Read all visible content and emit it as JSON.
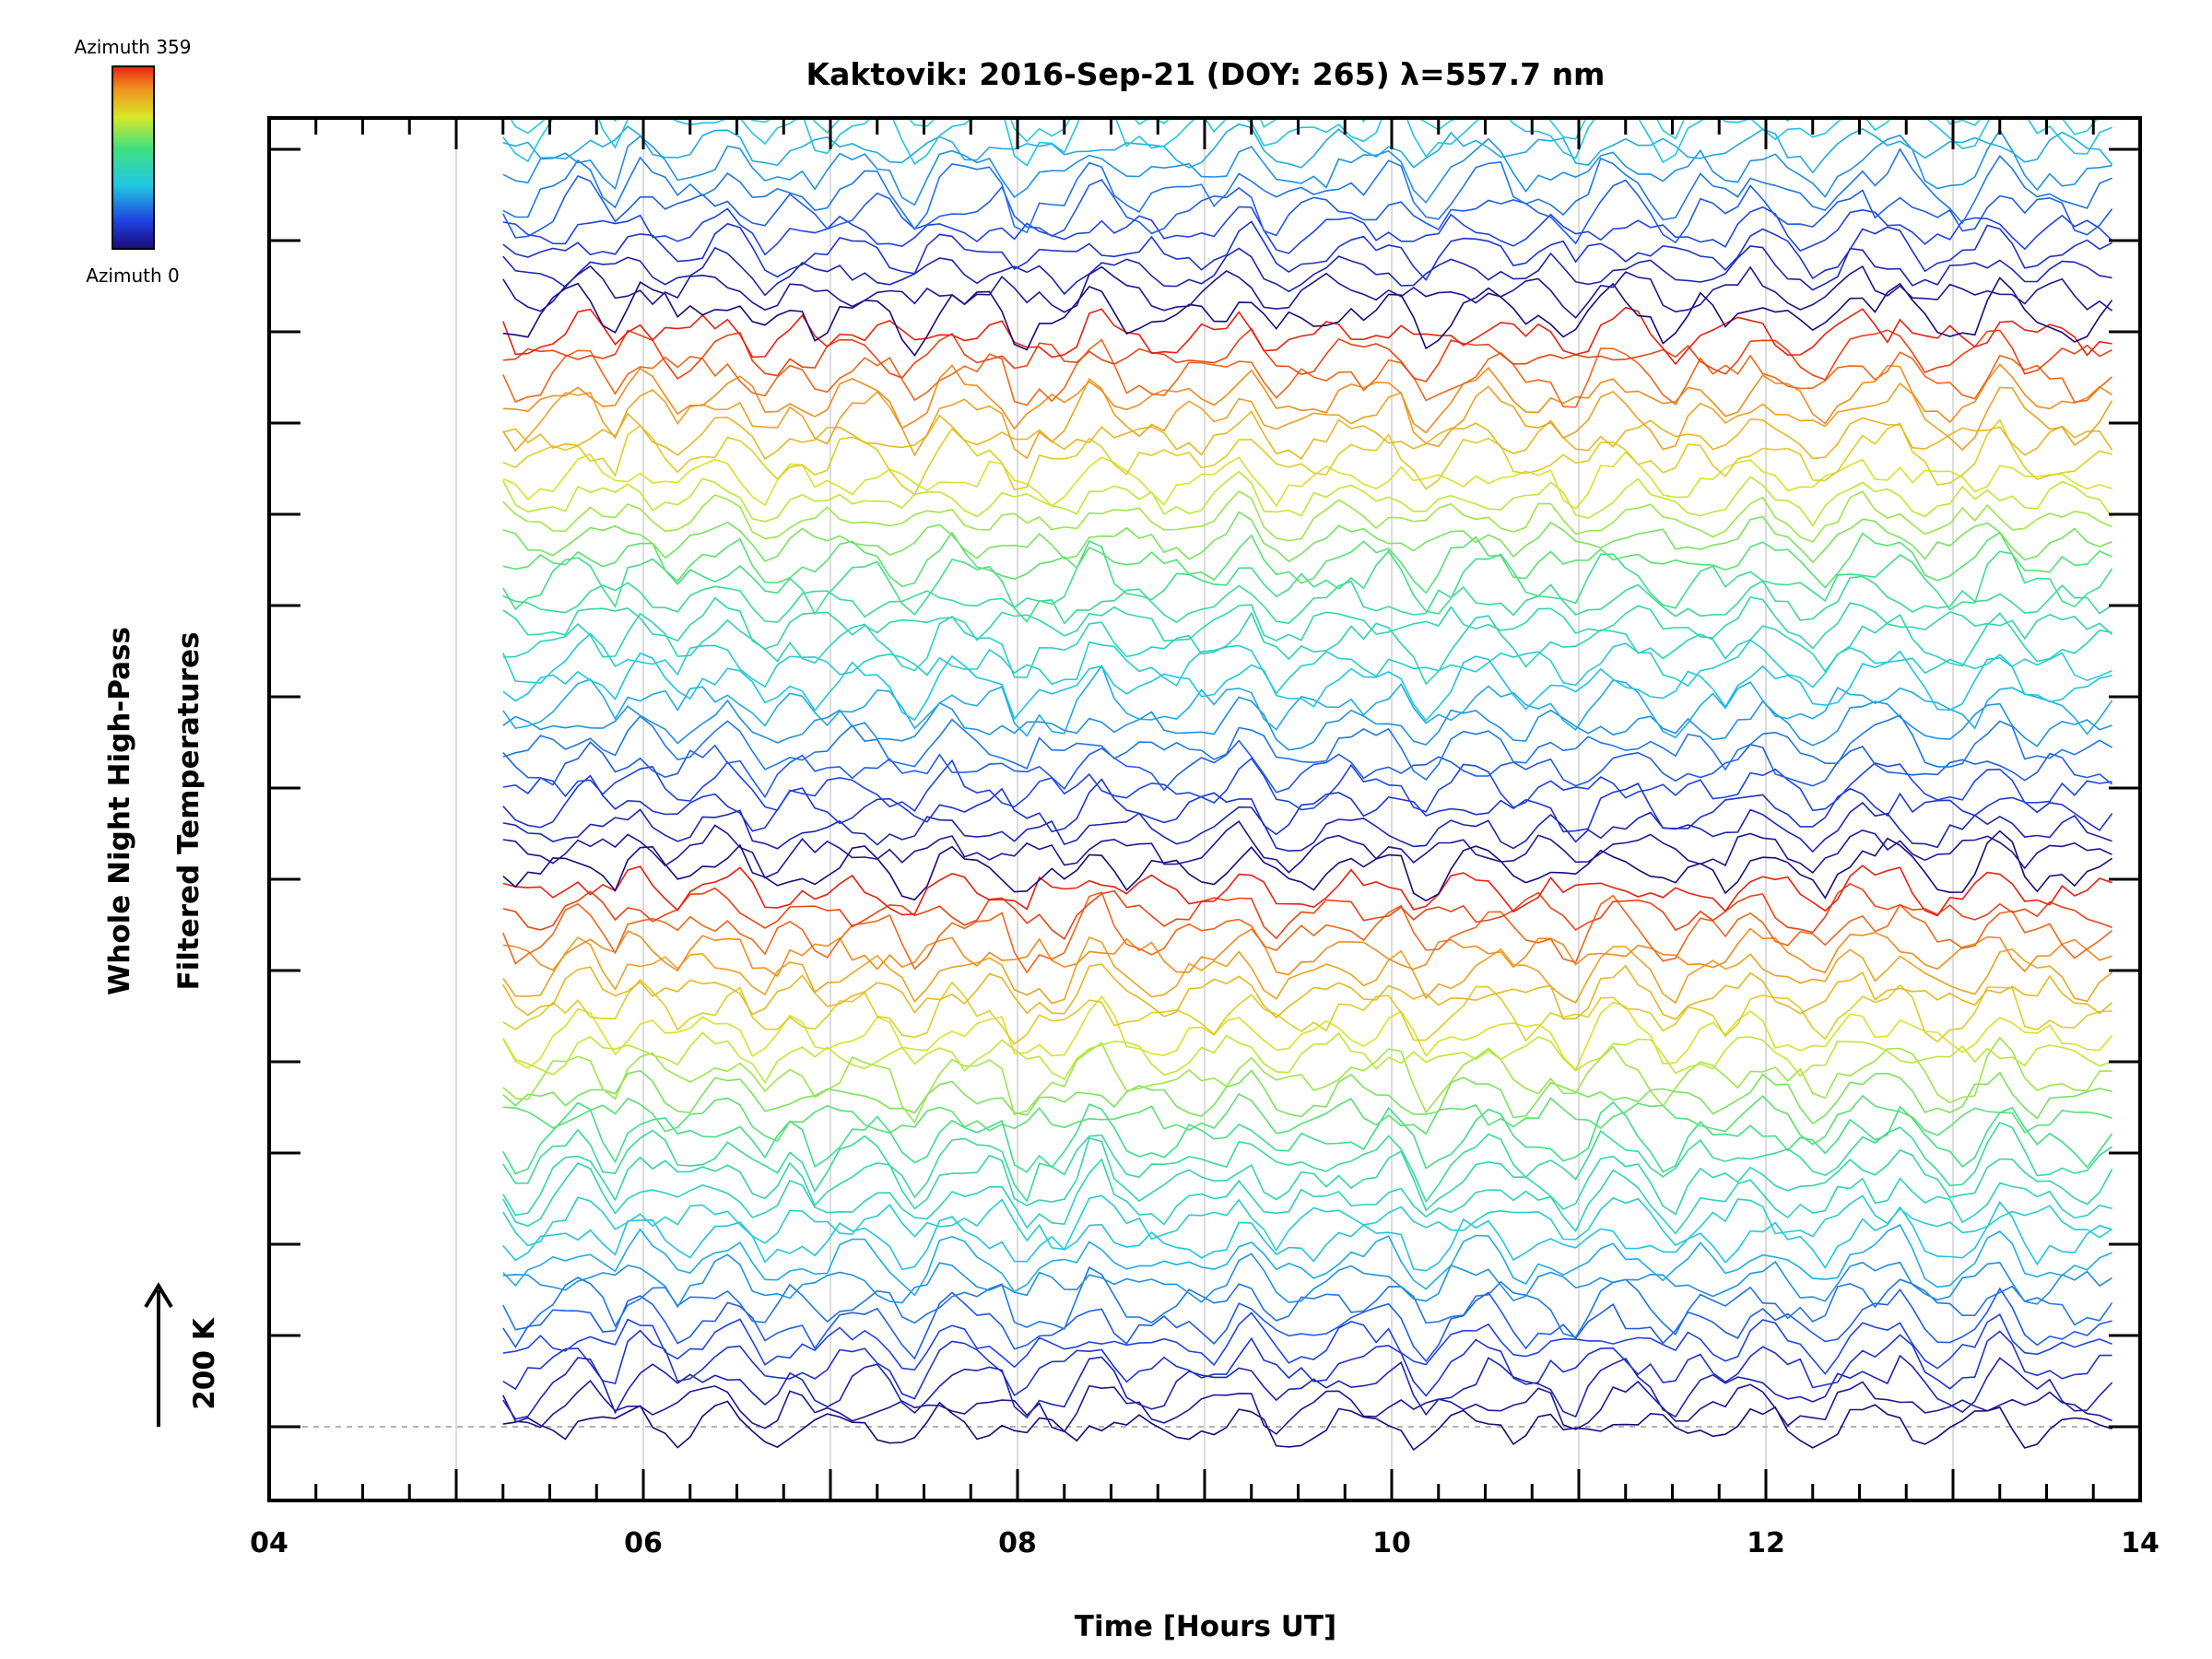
{
  "chart_data": {
    "type": "line",
    "title": "Kaktovik: 2016-Sep-21 (DOY: 265) λ=557.7 nm",
    "xlabel": "Time [Hours UT]",
    "ylabel_line1": "Whole Night High-Pass",
    "ylabel_line2": "Filtered Temperatures",
    "scale_label": "200 K",
    "xlim": [
      4,
      14
    ],
    "x_ticks": [
      "04",
      "06",
      "08",
      "10",
      "12",
      "14"
    ],
    "data_start_hour": 5.25,
    "data_end_hour": 13.85,
    "colorbar": {
      "top_label": "Azimuth 359",
      "bottom_label": "Azimuth 0",
      "azimuth_min": 0,
      "azimuth_max": 359
    },
    "offset_step_K": 20,
    "num_traces": 110,
    "series_note": "Stacked high-pass filtered temperature traces, one per azimuth sector; each trace offset vertically, colour encodes azimuth (0 dark blue to 359 red)."
  },
  "colors": {
    "axis": "#000000",
    "grid": "#d0d0d0",
    "baseline": "#9a9a9a"
  }
}
